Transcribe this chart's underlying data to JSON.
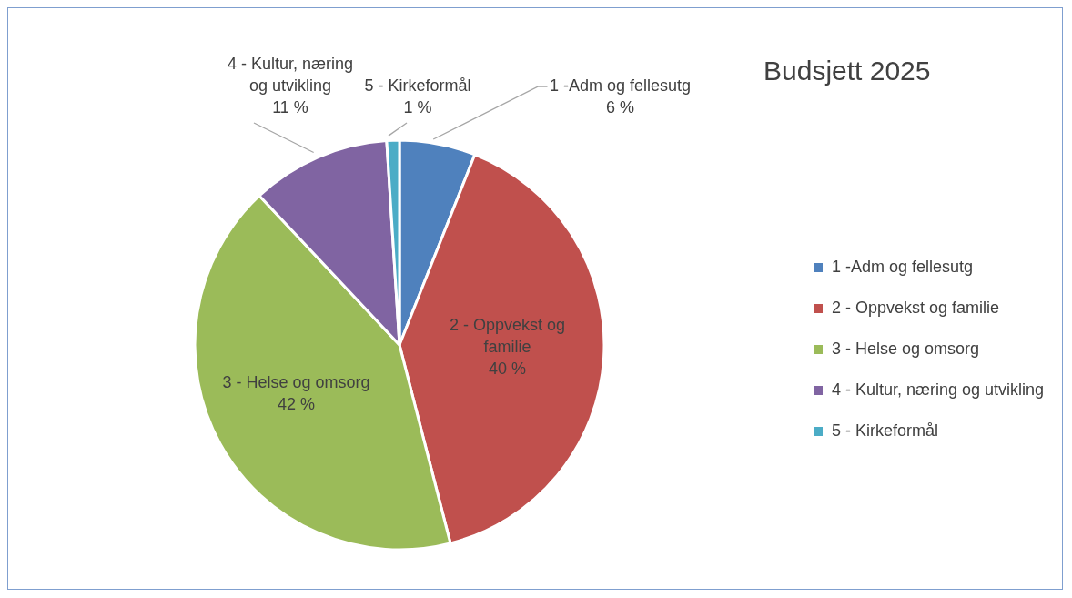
{
  "chart_data": {
    "type": "pie",
    "title": "Budsjett 2025",
    "categories": [
      "1 -Adm og fellesutg",
      "2 - Oppvekst og familie",
      "3 - Helse og omsorg",
      "4 - Kultur, næring og utvikling",
      "5 - Kirkeformål"
    ],
    "values": [
      6,
      40,
      42,
      11,
      1
    ],
    "value_labels": [
      "6 %",
      "40 %",
      "42 %",
      "11 %",
      "1 %"
    ],
    "colors": [
      "#4f81bd",
      "#c0504d",
      "#9bbb59",
      "#8064a2",
      "#4bacc6"
    ],
    "legend": "right"
  }
}
